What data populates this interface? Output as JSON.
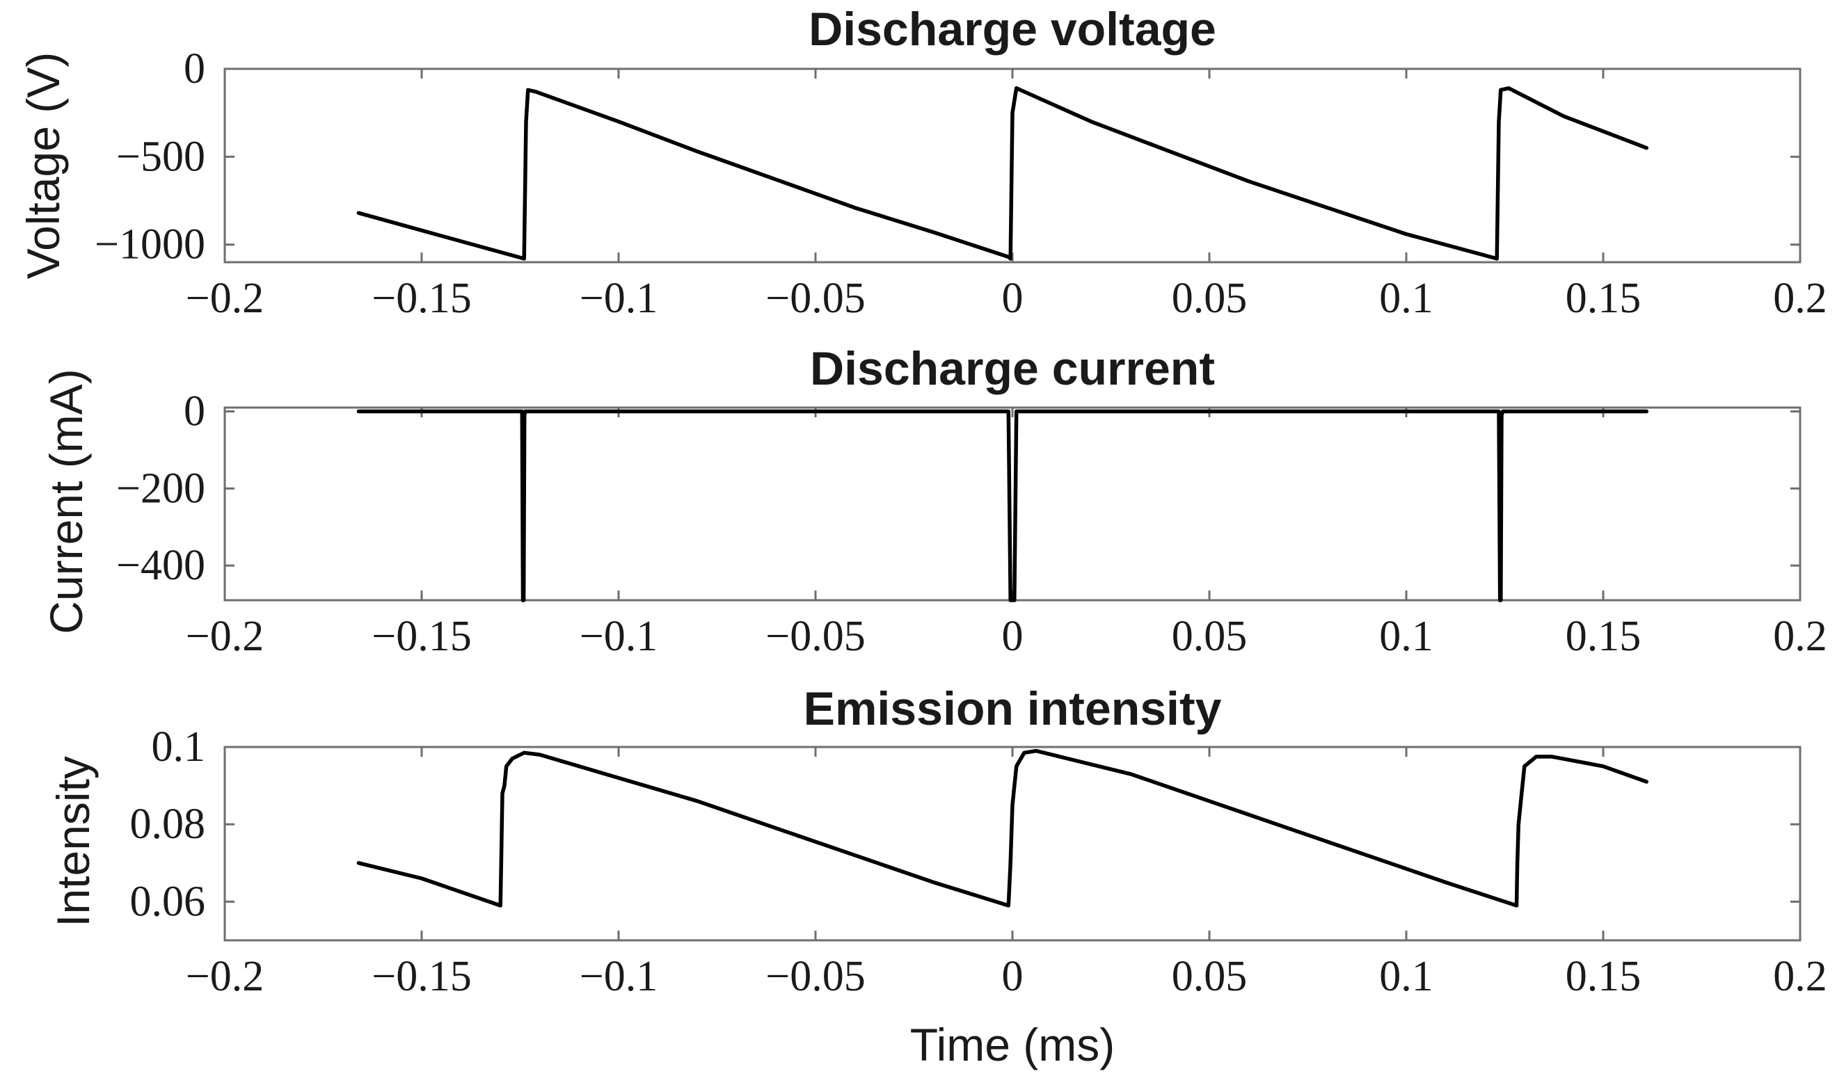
{
  "chart_data": [
    {
      "type": "line",
      "title": "Discharge voltage",
      "xlabel": "",
      "ylabel": "Voltage (V)",
      "xlim": [
        -0.2,
        0.2
      ],
      "ylim": [
        -1100,
        0
      ],
      "xticks": [
        -0.2,
        -0.15,
        -0.1,
        -0.05,
        0,
        0.05,
        0.1,
        0.15,
        0.2
      ],
      "xtick_labels": [
        "−0.2",
        "−0.15",
        "−0.1",
        "−0.05",
        "0",
        "0.05",
        "0.1",
        "0.15",
        "0.2"
      ],
      "yticks": [
        0,
        -500,
        -1000
      ],
      "ytick_labels": [
        "0",
        "−500",
        "−1000"
      ],
      "series": [
        {
          "name": "Discharge voltage",
          "x": [
            -0.166,
            -0.145,
            -0.124,
            -0.1235,
            -0.123,
            -0.121,
            -0.1,
            -0.08,
            -0.06,
            -0.04,
            -0.02,
            -0.001,
            -0.0005,
            0.0,
            0.001,
            0.02,
            0.04,
            0.06,
            0.08,
            0.1,
            0.123,
            0.1235,
            0.124,
            0.126,
            0.14,
            0.161
          ],
          "y": [
            -820,
            -950,
            -1080,
            -300,
            -120,
            -130,
            -300,
            -470,
            -630,
            -790,
            -930,
            -1070,
            -1080,
            -250,
            -110,
            -300,
            -470,
            -640,
            -790,
            -940,
            -1080,
            -300,
            -120,
            -110,
            -270,
            -450
          ]
        }
      ]
    },
    {
      "type": "line",
      "title": "Discharge current",
      "xlabel": "",
      "ylabel": "Current (mA)",
      "xlim": [
        -0.2,
        0.2
      ],
      "ylim": [
        -490,
        10
      ],
      "xticks": [
        -0.2,
        -0.15,
        -0.1,
        -0.05,
        0,
        0.05,
        0.1,
        0.15,
        0.2
      ],
      "xtick_labels": [
        "−0.2",
        "−0.15",
        "−0.1",
        "−0.05",
        "0",
        "0.05",
        "0.1",
        "0.15",
        "0.2"
      ],
      "yticks": [
        0,
        -200,
        -400
      ],
      "ytick_labels": [
        "0",
        "−200",
        "−400"
      ],
      "series": [
        {
          "name": "Discharge current",
          "x": [
            -0.166,
            -0.1245,
            -0.1243,
            -0.1241,
            -0.1239,
            -0.1237,
            -0.001,
            -0.0005,
            0.0,
            0.0005,
            0.001,
            0.1235,
            0.1238,
            0.124,
            0.1242,
            0.1245,
            0.161
          ],
          "y": [
            0,
            0,
            -490,
            -490,
            -10,
            0,
            0,
            -490,
            -490,
            -490,
            0,
            0,
            -490,
            -490,
            -10,
            0,
            0
          ]
        }
      ]
    },
    {
      "type": "line",
      "title": "Emission intensity",
      "xlabel": "Time (ms)",
      "ylabel": "Intensity",
      "xlim": [
        -0.2,
        0.2
      ],
      "ylim": [
        0.05,
        0.1
      ],
      "xticks": [
        -0.2,
        -0.15,
        -0.1,
        -0.05,
        0,
        0.05,
        0.1,
        0.15,
        0.2
      ],
      "xtick_labels": [
        "−0.2",
        "−0.15",
        "−0.1",
        "−0.05",
        "0",
        "0.05",
        "0.1",
        "0.15",
        "0.2"
      ],
      "yticks": [
        0.1,
        0.08,
        0.06
      ],
      "ytick_labels": [
        "0.1",
        "0.08",
        "0.06"
      ],
      "series": [
        {
          "name": "Emission intensity",
          "x": [
            -0.166,
            -0.15,
            -0.13,
            -0.1298,
            -0.1295,
            -0.129,
            -0.1285,
            -0.127,
            -0.124,
            -0.12,
            -0.1,
            -0.08,
            -0.06,
            -0.04,
            -0.02,
            -0.001,
            -0.0005,
            0.0,
            0.001,
            0.003,
            0.006,
            0.01,
            0.03,
            0.05,
            0.07,
            0.09,
            0.11,
            0.128,
            0.1282,
            0.1285,
            0.129,
            0.13,
            0.133,
            0.137,
            0.15,
            0.161
          ],
          "y": [
            0.07,
            0.066,
            0.059,
            0.07,
            0.088,
            0.09,
            0.095,
            0.097,
            0.0985,
            0.098,
            0.092,
            0.086,
            0.079,
            0.072,
            0.065,
            0.059,
            0.07,
            0.085,
            0.095,
            0.0985,
            0.099,
            0.098,
            0.093,
            0.086,
            0.079,
            0.072,
            0.065,
            0.059,
            0.07,
            0.08,
            0.085,
            0.095,
            0.0975,
            0.0975,
            0.095,
            0.091
          ]
        }
      ]
    }
  ]
}
